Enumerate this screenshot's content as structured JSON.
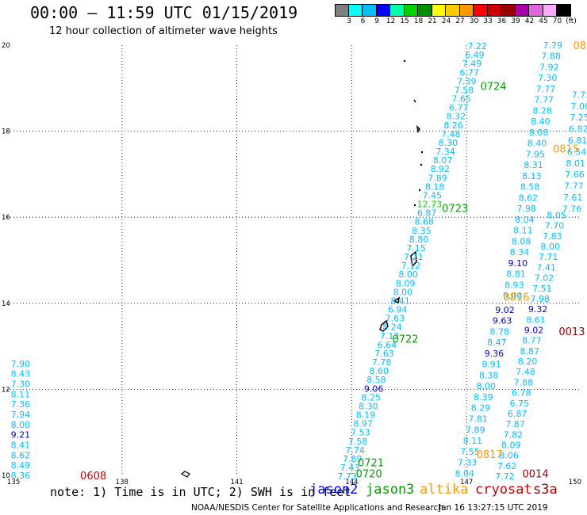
{
  "header": {
    "title": "00:00 – 11:59 UTC 01/15/2019",
    "subtitle": "12 hour collection of altimeter wave heights"
  },
  "colorbar": {
    "colors": [
      "#7f7f7f",
      "#00ffff",
      "#00bfff",
      "#0000ff",
      "#00ffaa",
      "#00d000",
      "#009000",
      "#ffff00",
      "#ffcc00",
      "#ff9900",
      "#ff0000",
      "#cc0000",
      "#990000",
      "#aa00aa",
      "#dd66dd",
      "#ffaaff",
      "#000000"
    ],
    "labels": [
      "3",
      "6",
      "9",
      "12",
      "15",
      "18",
      "21",
      "24",
      "27",
      "30",
      "33",
      "36",
      "39",
      "42",
      "45",
      "70",
      "(ft)"
    ]
  },
  "map": {
    "lon_ticks": [
      "135",
      "138",
      "141",
      "144",
      "147",
      "150"
    ],
    "lat_ticks": [
      "10",
      "12",
      "14",
      "16",
      "18",
      "20"
    ],
    "colors": {
      "jason2": "#0000ff",
      "jason3": "#00a000",
      "altika": "#ff9900",
      "cryosat": "#cc0000",
      "s3a": "#990000",
      "low": "#00bfff",
      "mid": "#0000c0",
      "high": "#00d000"
    },
    "track_labels": [
      {
        "text": "0608",
        "lon": 137.25,
        "lat": 10.0,
        "sat": "cryosat"
      },
      {
        "text": "0720",
        "lon": 144.45,
        "lat": 10.05,
        "sat": "jason3"
      },
      {
        "text": "0721",
        "lon": 144.5,
        "lat": 10.3,
        "sat": "jason3"
      },
      {
        "text": "0722",
        "lon": 145.4,
        "lat": 13.18,
        "sat": "jason3"
      },
      {
        "text": "0723",
        "lon": 146.7,
        "lat": 16.22,
        "sat": "jason3"
      },
      {
        "text": "0724",
        "lon": 147.7,
        "lat": 19.05,
        "sat": "jason3"
      },
      {
        "text": "0815",
        "lon": 149.6,
        "lat": 17.6,
        "sat": "altika"
      },
      {
        "text": "0816",
        "lon": 148.3,
        "lat": 14.15,
        "sat": "altika"
      },
      {
        "text": "0817",
        "lon": 147.6,
        "lat": 10.5,
        "sat": "altika"
      },
      {
        "text": "08",
        "lon": 149.95,
        "lat": 20.0,
        "sat": "altika"
      },
      {
        "text": "0013",
        "lon": 149.75,
        "lat": 13.35,
        "sat": "s3a"
      },
      {
        "text": "0014",
        "lon": 148.8,
        "lat": 10.05,
        "sat": "s3a"
      }
    ],
    "tracks": [
      {
        "id": "west",
        "values": [
          "7.90",
          "8.43",
          "7.30",
          "8.11",
          "7.36",
          "7.94",
          "8.00",
          "9.21",
          "8.41",
          "8.62",
          "8.49",
          "8.36"
        ],
        "levels": [
          "low",
          "low",
          "low",
          "low",
          "low",
          "low",
          "low",
          "mid",
          "low",
          "low",
          "low",
          "low"
        ],
        "lon0": 135.35,
        "lat0": 12.6,
        "lon1": 135.35,
        "lat1": 10.0
      },
      {
        "id": "j3-a",
        "values": [
          "7.22",
          "6.49",
          "7.49",
          "6.77",
          "7.39",
          "7.58",
          "7.65",
          "6.77",
          "8.32",
          "8.26",
          "7.48",
          "8.30",
          "7.34",
          "8.07",
          "8.92",
          "7.89",
          "8.18",
          "7.45",
          "12.73",
          "6.87",
          "8.68",
          "8.35",
          "8.80",
          "7.15",
          "7.21",
          "7.12",
          "8.00",
          "8.09",
          "8.00",
          "8.41",
          "6.94",
          "7.63",
          "8.24",
          "7.12",
          "6.64",
          "7.63",
          "7.78",
          "8.60",
          "8.58",
          "9.06",
          "8.25",
          "8.30",
          "8.19",
          "8.97",
          "7.53",
          "7.58",
          "7.74",
          "7.89",
          "7.43",
          "7.73"
        ],
        "levels": [
          "low",
          "low",
          "low",
          "low",
          "low",
          "low",
          "low",
          "low",
          "low",
          "low",
          "low",
          "low",
          "low",
          "low",
          "low",
          "low",
          "low",
          "low",
          "high",
          "low",
          "low",
          "low",
          "low",
          "low",
          "low",
          "low",
          "low",
          "low",
          "low",
          "low",
          "low",
          "low",
          "low",
          "low",
          "low",
          "low",
          "low",
          "low",
          "low",
          "mid",
          "low",
          "low",
          "low",
          "low",
          "low",
          "low",
          "low",
          "low",
          "low",
          "low"
        ],
        "lon0": 147.28,
        "lat0": 19.98,
        "lon1": 143.88,
        "lat1": 9.98
      },
      {
        "id": "mid-b",
        "values": [
          "9.02",
          "9.63",
          "8.78",
          "8.47",
          "9.36",
          "8.91",
          "8.38",
          "8.00",
          "8.39",
          "8.29",
          "7.81",
          "7.89",
          "8.11",
          "7.55",
          "7.33",
          "8.04"
        ],
        "levels": [
          "mid",
          "mid",
          "low",
          "low",
          "mid",
          "low",
          "low",
          "low",
          "low",
          "low",
          "low",
          "low",
          "low",
          "low",
          "low",
          "low"
        ],
        "lon0": 148.0,
        "lat0": 13.85,
        "lon1": 146.95,
        "lat1": 10.05
      },
      {
        "id": "altika-a",
        "values": [
          "7.79",
          "7.88",
          "7.92",
          "7.30",
          "7.77",
          "7.77",
          "8.28",
          "8.40",
          "8.08",
          "8.40",
          "7.95",
          "8.31",
          "8.13",
          "8.58",
          "8.62",
          "7.98",
          "8.04",
          "8.11",
          "8.08",
          "8.34",
          "9.10",
          "8.81",
          "8.93",
          "9.00"
        ],
        "levels": [
          "low",
          "low",
          "low",
          "low",
          "low",
          "low",
          "low",
          "low",
          "low",
          "low",
          "low",
          "low",
          "low",
          "low",
          "low",
          "low",
          "low",
          "low",
          "low",
          "low",
          "mid",
          "low",
          "low",
          "low"
        ],
        "lon0": 149.25,
        "lat0": 20.0,
        "lon1": 148.2,
        "lat1": 14.18
      },
      {
        "id": "altika-b",
        "values": [
          "8.05",
          "7.70",
          "7.83",
          "8.00",
          "7.71",
          "7.41",
          "7.02",
          "7.51",
          "7.98",
          "9.32",
          "8.61",
          "9.02",
          "8.77",
          "8.87",
          "8.20",
          "7.48",
          "7.88",
          "6.78",
          "6.75",
          "6.87",
          "7.87",
          "7.82",
          "8.09",
          "8.06",
          "7.62",
          "7.72"
        ],
        "levels": [
          "low",
          "low",
          "low",
          "low",
          "low",
          "low",
          "low",
          "low",
          "low",
          "mid",
          "low",
          "mid",
          "low",
          "low",
          "low",
          "low",
          "low",
          "low",
          "low",
          "low",
          "low",
          "low",
          "low",
          "low",
          "low",
          "low"
        ],
        "lon0": 149.35,
        "lat0": 16.05,
        "lon1": 148.0,
        "lat1": 9.98
      },
      {
        "id": "east",
        "values": [
          "7.73",
          "7.00",
          "7.25",
          "6.82",
          "6.81",
          "6.54",
          "8.01",
          "7.66",
          "7.77",
          "7.61",
          "7.76"
        ],
        "levels": [
          "low",
          "low",
          "low",
          "low",
          "low",
          "low",
          "low",
          "low",
          "low",
          "low",
          "low"
        ],
        "lon0": 150.0,
        "lat0": 18.85,
        "lon1": 149.75,
        "lat1": 16.2
      }
    ]
  },
  "note": "note: 1) Time is in UTC; 2) SWH is in feet",
  "legend": [
    {
      "name": "jason2",
      "color": "#0000ff"
    },
    {
      "name": "jason3",
      "color": "#00a000"
    },
    {
      "name": "altika",
      "color": "#ff9900"
    },
    {
      "name": "cryosat",
      "color": "#cc0000"
    },
    {
      "name": "s3a",
      "color": "#990000"
    }
  ],
  "credit": "NOAA/NESDIS Center for Satellite Applications and Research",
  "stamp": "Jan 16 13:27:15 UTC 2019"
}
